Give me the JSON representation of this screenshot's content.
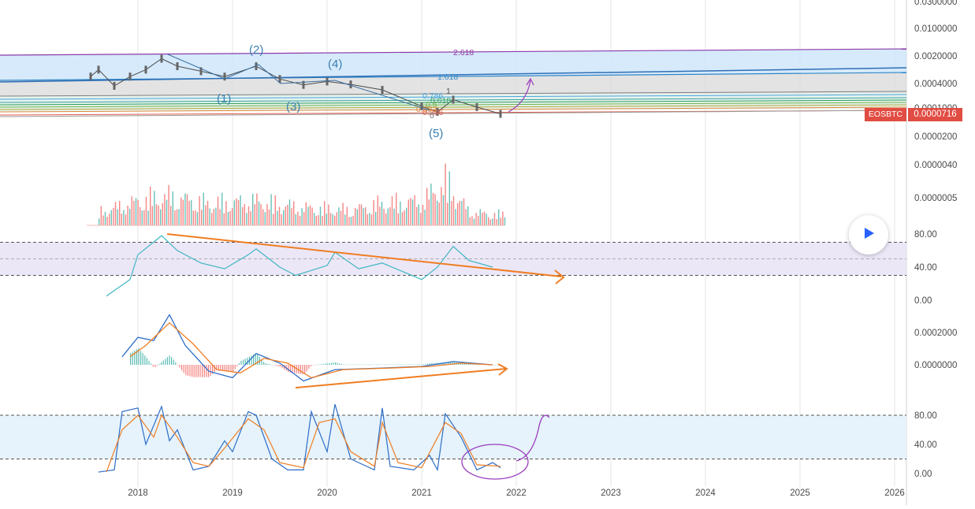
{
  "symbol": "EOSBTC",
  "last_price": "0.0000716",
  "chart_data": [
    {
      "type": "line",
      "panel": "price",
      "scale": "log",
      "y_tick_labels": [
        "0.0300000",
        "0.0100000",
        "0.0020000",
        "0.0004000",
        "0.0001000",
        "0.0000200",
        "0.0000040",
        "0.0000005"
      ],
      "x_tick_labels": [
        "2018",
        "2019",
        "2020",
        "2021",
        "2022",
        "2023",
        "2024",
        "2025",
        "2026"
      ],
      "wave_labels": [
        "(1)",
        "(2)",
        "(3)",
        "(4)",
        "(5)"
      ],
      "fib_labels": [
        "2.618",
        "1.618",
        "1",
        "0.786",
        "0.618",
        "0.5",
        "0.382",
        "0.236",
        "0"
      ],
      "series": [
        {
          "values": [
            {
              "x": "2017-07",
              "y": 0.0006
            },
            {
              "x": "2017-08",
              "y": 0.0009
            },
            {
              "x": "2017-10",
              "y": 0.00035
            },
            {
              "x": "2017-12",
              "y": 0.0006
            },
            {
              "x": "2018-02",
              "y": 0.0009
            },
            {
              "x": "2018-04",
              "y": 0.0017
            },
            {
              "x": "2018-06",
              "y": 0.0011
            },
            {
              "x": "2018-09",
              "y": 0.00082
            },
            {
              "x": "2018-12",
              "y": 0.0006
            },
            {
              "x": "2019-04",
              "y": 0.0011
            },
            {
              "x": "2019-07",
              "y": 0.00052
            },
            {
              "x": "2019-10",
              "y": 0.00037
            },
            {
              "x": "2020-01",
              "y": 0.00045
            },
            {
              "x": "2020-04",
              "y": 0.00038
            },
            {
              "x": "2020-08",
              "y": 0.00028
            },
            {
              "x": "2021-01",
              "y": 0.00011
            },
            {
              "x": "2021-03",
              "y": 8e-05
            },
            {
              "x": "2021-05",
              "y": 0.00016
            },
            {
              "x": "2021-08",
              "y": 0.000105
            },
            {
              "x": "2021-11",
              "y": 7.16e-05
            }
          ]
        }
      ]
    },
    {
      "type": "bar",
      "panel": "volume",
      "series": [
        {
          "values": [
            {
              "x": "2017-08",
              "y": 0.3
            },
            {
              "x": "2018-02",
              "y": 0.6
            },
            {
              "x": "2018-05",
              "y": 0.65
            },
            {
              "x": "2018-10",
              "y": 0.5
            },
            {
              "x": "2019-04",
              "y": 0.55
            },
            {
              "x": "2019-10",
              "y": 0.4
            },
            {
              "x": "2020-04",
              "y": 0.35
            },
            {
              "x": "2020-08",
              "y": 0.5
            },
            {
              "x": "2021-01",
              "y": 0.55
            },
            {
              "x": "2021-04",
              "y": 1.0
            },
            {
              "x": "2021-07",
              "y": 0.3
            },
            {
              "x": "2021-10",
              "y": 0.25
            }
          ]
        }
      ]
    },
    {
      "type": "line",
      "panel": "rsi",
      "y_tick_labels": [
        "80.00",
        "40.00",
        "0.00"
      ],
      "ylim": [
        0,
        100
      ],
      "bands": [
        30,
        50,
        70
      ],
      "series": [
        {
          "values": [
            {
              "x": "2017-09",
              "y": 5
            },
            {
              "x": "2017-12",
              "y": 25
            },
            {
              "x": "2018-01",
              "y": 55
            },
            {
              "x": "2018-04",
              "y": 78
            },
            {
              "x": "2018-06",
              "y": 60
            },
            {
              "x": "2018-09",
              "y": 45
            },
            {
              "x": "2018-12",
              "y": 38
            },
            {
              "x": "2019-03",
              "y": 55
            },
            {
              "x": "2019-04",
              "y": 62
            },
            {
              "x": "2019-07",
              "y": 40
            },
            {
              "x": "2019-09",
              "y": 30
            },
            {
              "x": "2020-01",
              "y": 42
            },
            {
              "x": "2020-02",
              "y": 58
            },
            {
              "x": "2020-05",
              "y": 38
            },
            {
              "x": "2020-08",
              "y": 45
            },
            {
              "x": "2021-01",
              "y": 25
            },
            {
              "x": "2021-03",
              "y": 40
            },
            {
              "x": "2021-05",
              "y": 65
            },
            {
              "x": "2021-07",
              "y": 48
            },
            {
              "x": "2021-10",
              "y": 40
            }
          ]
        }
      ]
    },
    {
      "type": "line",
      "panel": "macd",
      "y_tick_labels": [
        "0.0002000",
        "0.0000000"
      ],
      "series": [
        {
          "values": [
            {
              "x": "2017-11",
              "y": 5e-05
            },
            {
              "x": "2018-01",
              "y": 0.00017
            },
            {
              "x": "2018-03",
              "y": 0.00015
            },
            {
              "x": "2018-05",
              "y": 0.00031
            },
            {
              "x": "2018-07",
              "y": 0.00012
            },
            {
              "x": "2018-10",
              "y": -4e-05
            },
            {
              "x": "2019-01",
              "y": -8e-05
            },
            {
              "x": "2019-04",
              "y": 7e-05
            },
            {
              "x": "2019-07",
              "y": 1e-05
            },
            {
              "x": "2019-10",
              "y": -0.0001
            },
            {
              "x": "2020-02",
              "y": -3e-05
            },
            {
              "x": "2020-08",
              "y": -2e-05
            },
            {
              "x": "2021-01",
              "y": -1e-05
            },
            {
              "x": "2021-05",
              "y": 2e-05
            },
            {
              "x": "2021-10",
              "y": 0.0
            }
          ]
        },
        {
          "values": [
            {
              "x": "2017-12",
              "y": 5e-05
            },
            {
              "x": "2018-02",
              "y": 0.00012
            },
            {
              "x": "2018-05",
              "y": 0.00026
            },
            {
              "x": "2018-08",
              "y": 0.00013
            },
            {
              "x": "2018-11",
              "y": -3e-05
            },
            {
              "x": "2019-02",
              "y": -5e-05
            },
            {
              "x": "2019-05",
              "y": 4e-05
            },
            {
              "x": "2019-08",
              "y": 1e-05
            },
            {
              "x": "2019-11",
              "y": -8e-05
            },
            {
              "x": "2020-03",
              "y": -3e-05
            },
            {
              "x": "2020-09",
              "y": -2e-05
            },
            {
              "x": "2021-02",
              "y": -1e-05
            },
            {
              "x": "2021-06",
              "y": 1e-05
            },
            {
              "x": "2021-10",
              "y": 0.0
            }
          ]
        }
      ]
    },
    {
      "type": "line",
      "panel": "stoch-rsi",
      "y_tick_labels": [
        "80.00",
        "40.00",
        "0.00"
      ],
      "ylim": [
        0,
        100
      ],
      "bands": [
        20,
        80
      ],
      "series": [
        {
          "values": [
            {
              "x": "2017-08",
              "y": 2
            },
            {
              "x": "2017-10",
              "y": 5
            },
            {
              "x": "2017-11",
              "y": 85
            },
            {
              "x": "2018-01",
              "y": 90
            },
            {
              "x": "2018-02",
              "y": 40
            },
            {
              "x": "2018-04",
              "y": 92
            },
            {
              "x": "2018-05",
              "y": 45
            },
            {
              "x": "2018-06",
              "y": 60
            },
            {
              "x": "2018-08",
              "y": 5
            },
            {
              "x": "2018-10",
              "y": 10
            },
            {
              "x": "2018-12",
              "y": 45
            },
            {
              "x": "2019-01",
              "y": 30
            },
            {
              "x": "2019-03",
              "y": 85
            },
            {
              "x": "2019-04",
              "y": 80
            },
            {
              "x": "2019-06",
              "y": 20
            },
            {
              "x": "2019-08",
              "y": 5
            },
            {
              "x": "2019-10",
              "y": 5
            },
            {
              "x": "2019-11",
              "y": 85
            },
            {
              "x": "2020-01",
              "y": 30
            },
            {
              "x": "2020-02",
              "y": 95
            },
            {
              "x": "2020-04",
              "y": 20
            },
            {
              "x": "2020-07",
              "y": 5
            },
            {
              "x": "2020-08",
              "y": 90
            },
            {
              "x": "2020-09",
              "y": 10
            },
            {
              "x": "2020-12",
              "y": 5
            },
            {
              "x": "2021-02",
              "y": 25
            },
            {
              "x": "2021-03",
              "y": 5
            },
            {
              "x": "2021-04",
              "y": 82
            },
            {
              "x": "2021-06",
              "y": 50
            },
            {
              "x": "2021-08",
              "y": 5
            },
            {
              "x": "2021-10",
              "y": 15
            },
            {
              "x": "2021-11",
              "y": 8
            }
          ]
        },
        {
          "values": [
            {
              "x": "2017-09",
              "y": 2
            },
            {
              "x": "2017-11",
              "y": 60
            },
            {
              "x": "2018-01",
              "y": 80
            },
            {
              "x": "2018-03",
              "y": 50
            },
            {
              "x": "2018-04",
              "y": 80
            },
            {
              "x": "2018-06",
              "y": 50
            },
            {
              "x": "2018-08",
              "y": 15
            },
            {
              "x": "2018-10",
              "y": 10
            },
            {
              "x": "2018-12",
              "y": 35
            },
            {
              "x": "2019-03",
              "y": 75
            },
            {
              "x": "2019-05",
              "y": 60
            },
            {
              "x": "2019-07",
              "y": 15
            },
            {
              "x": "2019-10",
              "y": 8
            },
            {
              "x": "2019-12",
              "y": 70
            },
            {
              "x": "2020-02",
              "y": 75
            },
            {
              "x": "2020-04",
              "y": 30
            },
            {
              "x": "2020-07",
              "y": 10
            },
            {
              "x": "2020-08",
              "y": 70
            },
            {
              "x": "2020-10",
              "y": 15
            },
            {
              "x": "2021-01",
              "y": 8
            },
            {
              "x": "2021-04",
              "y": 70
            },
            {
              "x": "2021-06",
              "y": 55
            },
            {
              "x": "2021-08",
              "y": 12
            },
            {
              "x": "2021-11",
              "y": 10
            }
          ]
        }
      ]
    }
  ],
  "colors": {
    "grid": "#e6e6e6",
    "axis_text": "#4a4a4a",
    "price_band_fill": "#cfe6fa",
    "gray_band_fill": "#d9d9d9",
    "rsi_line": "#3fb6c2",
    "rsi_band_fill": "#ece7f7",
    "macd_line": "#2c6cc7",
    "signal_line": "#ef7d22",
    "stoch_k": "#2c6cc7",
    "stoch_d": "#ef7d22",
    "stoch_band_fill": "#e6f3fc",
    "trend_arrow": "#ef7d22",
    "wave_label": "#3b7fb0",
    "fib_2618": "#8b3aa8",
    "fib_1618": "#2f86c8",
    "tag_red": "#e14c43",
    "up_bar": "#26a69a",
    "down_bar": "#ef5350"
  },
  "icons": [
    "play-icon"
  ]
}
